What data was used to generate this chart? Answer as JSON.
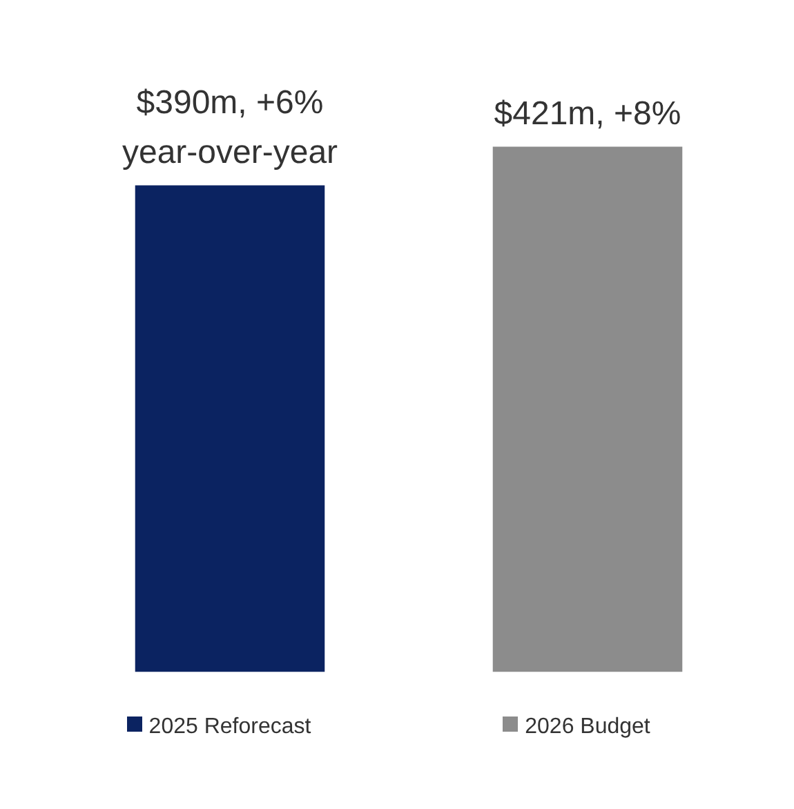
{
  "chart_data": {
    "type": "bar",
    "categories": [
      "2025 Reforecast",
      "2026 Budget"
    ],
    "values": [
      390,
      421
    ],
    "colors": [
      "#0b2361",
      "#8c8c8c"
    ],
    "value_labels": [
      "$390m",
      "$421m"
    ],
    "annotations": [
      ", +6% year-over-year",
      ", +8%"
    ],
    "tick_labels": "x",
    "grid": false
  }
}
